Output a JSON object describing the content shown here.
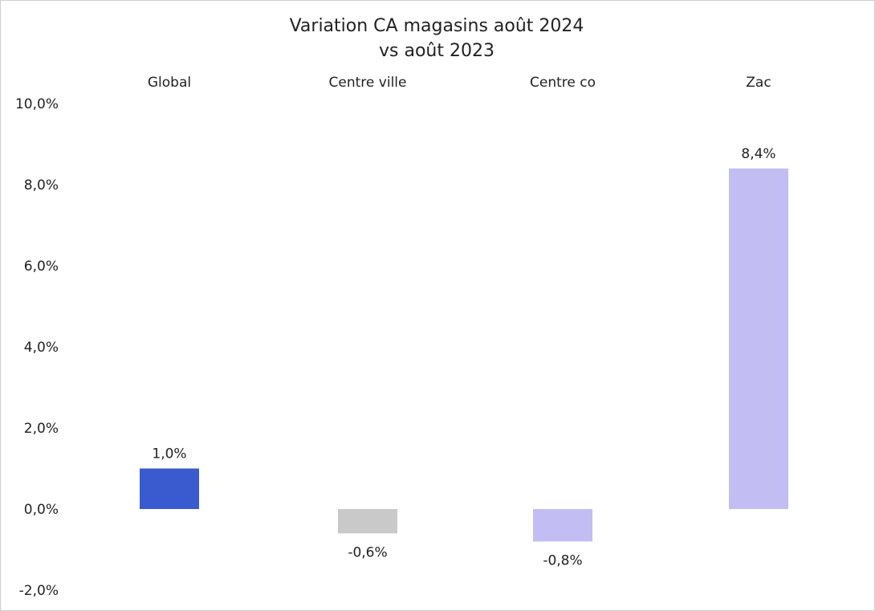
{
  "chart_data": {
    "type": "bar",
    "title": "Variation CA magasins août 2024",
    "subtitle": "vs août 2023",
    "categories": [
      "Global",
      "Centre ville",
      "Centre co",
      "Zac"
    ],
    "values": [
      1.0,
      -0.6,
      -0.8,
      8.4
    ],
    "value_labels": [
      "1,0%",
      "-0,6%",
      "-0,8%",
      "8,4%"
    ],
    "bar_colors": [
      "#3a5bcf",
      "#c9c9c9",
      "#c2bdf3",
      "#c2bdf3"
    ],
    "ylim": [
      -2,
      10
    ],
    "yticks": [
      10,
      8,
      6,
      4,
      2,
      0,
      -2
    ],
    "ytick_labels": [
      "10,0%",
      "8,0%",
      "6,0%",
      "4,0%",
      "2,0%",
      "0,0%",
      "-2,0%"
    ],
    "grid": false,
    "legend": false,
    "xlabel": "",
    "ylabel": ""
  }
}
